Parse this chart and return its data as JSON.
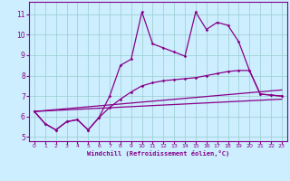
{
  "xlabel": "Windchill (Refroidissement éolien,°C)",
  "bg_color": "#cceeff",
  "line_color": "#880088",
  "grid_color": "#99cccc",
  "xlim": [
    -0.5,
    23.5
  ],
  "ylim": [
    4.8,
    11.6
  ],
  "yticks": [
    5,
    6,
    7,
    8,
    9,
    10,
    11
  ],
  "xticks": [
    0,
    1,
    2,
    3,
    4,
    5,
    6,
    7,
    8,
    9,
    10,
    11,
    12,
    13,
    14,
    15,
    16,
    17,
    18,
    19,
    20,
    21,
    22,
    23
  ],
  "line1_x": [
    0,
    1,
    2,
    3,
    4,
    5,
    6,
    7,
    8,
    9,
    10,
    11,
    12,
    13,
    14,
    15,
    16,
    17,
    18,
    19,
    20,
    21,
    22,
    23
  ],
  "line1_y": [
    6.25,
    5.65,
    5.35,
    5.75,
    5.85,
    5.35,
    5.95,
    7.0,
    8.5,
    8.8,
    11.1,
    9.55,
    9.35,
    9.15,
    8.95,
    11.1,
    10.25,
    10.6,
    10.45,
    9.65,
    8.25,
    7.1,
    7.05,
    7.0
  ],
  "line2_x": [
    0,
    1,
    2,
    3,
    4,
    5,
    6,
    7,
    8,
    9,
    10,
    11,
    12,
    13,
    14,
    15,
    16,
    17,
    18,
    19,
    20,
    21,
    22,
    23
  ],
  "line2_y": [
    6.25,
    5.65,
    5.35,
    5.75,
    5.85,
    5.35,
    5.95,
    6.45,
    6.85,
    7.2,
    7.5,
    7.65,
    7.75,
    7.8,
    7.85,
    7.9,
    8.0,
    8.1,
    8.2,
    8.25,
    8.25,
    7.1,
    7.05,
    7.0
  ],
  "line3_x": [
    0,
    23
  ],
  "line3_y": [
    6.25,
    7.3
  ],
  "line4_x": [
    0,
    23
  ],
  "line4_y": [
    6.25,
    6.85
  ]
}
